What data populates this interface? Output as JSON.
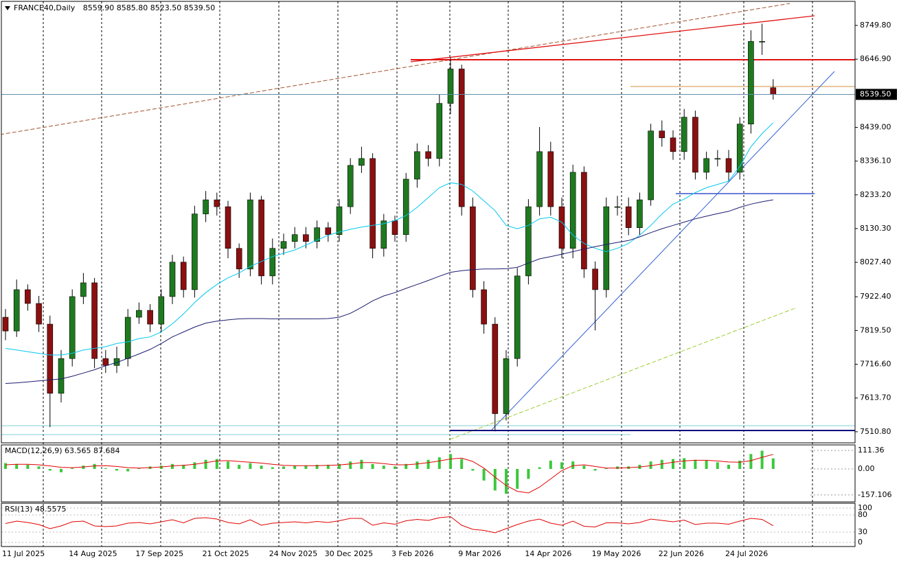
{
  "chart_data": {
    "type": "candlestick",
    "title": "FRANCE40,Daily",
    "header_values": [
      {
        "value": 8559.9,
        "label": "8559.90"
      },
      {
        "value": 8585.8,
        "label": "8585.80"
      },
      {
        "value": 8523.5,
        "label": "8523.50"
      },
      {
        "value": 8539.5,
        "label": "8539.50"
      }
    ],
    "categories": [
      "11 Jul 2025",
      null,
      null,
      null,
      null,
      null,
      "14 Aug 2025",
      null,
      null,
      null,
      null,
      null,
      "17 Sep 2025",
      null,
      null,
      null,
      null,
      null,
      "21 Oct 2025",
      null,
      null,
      null,
      null,
      null,
      "24 Nov 2025",
      null,
      null,
      null,
      null,
      "30 Dec 2025",
      null,
      null,
      null,
      null,
      null,
      "3 Feb 2026",
      null,
      null,
      null,
      null,
      null,
      "9 Mar 2026",
      null,
      null,
      null,
      null,
      null,
      "14 Apr 2026",
      null,
      null,
      null,
      null,
      null,
      "19 May 2026",
      null,
      null,
      null,
      null,
      null,
      "22 Jun 2026",
      null,
      null,
      null,
      null,
      null,
      "24 Jul 2026",
      null,
      null,
      null,
      null
    ],
    "open": [
      7860,
      7818,
      7944,
      7902,
      7839,
      7628,
      7734,
      7923,
      7965,
      7734,
      7713,
      7734,
      7860,
      7881,
      7839,
      7923,
      8028,
      7944,
      8175,
      8218,
      8197,
      8070,
      8007,
      8218,
      7986,
      8070,
      8091,
      8112,
      8091,
      8133,
      8112,
      8197,
      8323,
      8344,
      8070,
      8154,
      8112,
      8281,
      8365,
      8344,
      8512,
      8617,
      8197,
      7944,
      7839,
      7566,
      7734,
      7986,
      8197,
      8365,
      8197,
      8070,
      8302,
      8007,
      7944,
      8197,
      8197,
      8133,
      8218,
      8428,
      8407,
      8365,
      8470,
      8302,
      8344,
      8344,
      8302,
      8449,
      8701,
      8559.9
    ],
    "high": [
      7885,
      7975,
      7960,
      7925,
      7865,
      7760,
      7945,
      7995,
      7980,
      7760,
      7770,
      7885,
      7905,
      7900,
      7945,
      8050,
      8045,
      8200,
      8245,
      8240,
      8215,
      8085,
      8240,
      8230,
      8100,
      8115,
      8135,
      8135,
      8155,
      8150,
      8220,
      8345,
      8380,
      8360,
      8175,
      8170,
      8300,
      8390,
      8385,
      8540,
      8652,
      8630,
      8225,
      7970,
      7860,
      7760,
      8010,
      8220,
      8440,
      8395,
      8225,
      8325,
      8320,
      8030,
      8225,
      8230,
      8225,
      8240,
      8450,
      8460,
      8430,
      8495,
      8490,
      8365,
      8370,
      8370,
      8470,
      8735,
      8755,
      8585.8
    ],
    "low": [
      7790,
      7800,
      7880,
      7815,
      7525,
      7600,
      7710,
      7900,
      7705,
      7690,
      7690,
      7710,
      7840,
      7815,
      7815,
      7900,
      7920,
      7920,
      8150,
      8170,
      8040,
      7980,
      7985,
      7960,
      7960,
      8050,
      8070,
      8070,
      8070,
      8090,
      8090,
      8175,
      8300,
      8040,
      8045,
      8090,
      8090,
      8255,
      8320,
      8320,
      8480,
      8170,
      7920,
      7810,
      7512,
      7545,
      7710,
      7960,
      8170,
      8170,
      8040,
      8040,
      7980,
      7820,
      7920,
      8170,
      8110,
      8110,
      8200,
      8380,
      8340,
      8340,
      8280,
      8280,
      8320,
      8275,
      8280,
      8420,
      8660,
      8523.5
    ],
    "close": [
      7818,
      7944,
      7902,
      7839,
      7628,
      7734,
      7923,
      7965,
      7734,
      7713,
      7734,
      7860,
      7881,
      7839,
      7923,
      8028,
      7944,
      8175,
      8218,
      8197,
      8070,
      8007,
      8218,
      7986,
      8070,
      8091,
      8112,
      8091,
      8133,
      8112,
      8197,
      8323,
      8344,
      8070,
      8154,
      8112,
      8281,
      8365,
      8344,
      8512,
      8617,
      8197,
      7944,
      7839,
      7566,
      7734,
      7986,
      8197,
      8365,
      8197,
      8070,
      8302,
      8007,
      7944,
      8197,
      8197,
      8133,
      8218,
      8428,
      8407,
      8365,
      8470,
      8302,
      8344,
      8344,
      8302,
      8449,
      8701,
      8701,
      8539.5
    ],
    "up_color": "#1f7a1f",
    "down_color": "#8b1010",
    "ylim": [
      7477,
      8821
    ],
    "yticks": [
      {
        "value": 8749.8,
        "label": "8749.80"
      },
      {
        "value": 8646.9,
        "label": "8646.90"
      },
      {
        "value": 8439,
        "label": "8439.00"
      },
      {
        "value": 8336.1,
        "label": "8336.10"
      },
      {
        "value": 8233.2,
        "label": "8233.20"
      },
      {
        "value": 8130.3,
        "label": "8130.30"
      },
      {
        "value": 8027.4,
        "label": "8027.40"
      },
      {
        "value": 7922.4,
        "label": "7922.40"
      },
      {
        "value": 7819.5,
        "label": "7819.50"
      },
      {
        "value": 7716.6,
        "label": "7716.60"
      },
      {
        "value": 7613.7,
        "label": "7613.70"
      },
      {
        "value": 7510.8,
        "label": "7510.80"
      }
    ],
    "last_price": {
      "value": 8539.5,
      "label": "8539.50"
    },
    "overlays": [
      {
        "color": "#00c8f0",
        "values": [
          7765,
          7760,
          7755,
          7750,
          7745,
          7745,
          7750,
          7760,
          7765,
          7770,
          7780,
          7785,
          7795,
          7800,
          7815,
          7840,
          7870,
          7905,
          7935,
          7960,
          7980,
          7995,
          8015,
          8030,
          8045,
          8055,
          8065,
          8080,
          8095,
          8110,
          8120,
          8128,
          8135,
          8140,
          8145,
          8155,
          8170,
          8195,
          8225,
          8255,
          8270,
          8265,
          8245,
          8215,
          8185,
          8140,
          8130,
          8140,
          8160,
          8165,
          8150,
          8110,
          8085,
          8070,
          8060,
          8070,
          8085,
          8110,
          8140,
          8175,
          8205,
          8220,
          8240,
          8255,
          8265,
          8275,
          8320,
          8380,
          8420,
          8453
        ]
      },
      {
        "color": "#1a1a6e",
        "values": [
          7658,
          7660,
          7663,
          7666,
          7669,
          7672,
          7680,
          7690,
          7700,
          7712,
          7722,
          7735,
          7748,
          7762,
          7780,
          7800,
          7815,
          7830,
          7842,
          7848,
          7852,
          7855,
          7856,
          7856,
          7855,
          7855,
          7855,
          7855,
          7855,
          7856,
          7860,
          7872,
          7890,
          7910,
          7925,
          7935,
          7948,
          7960,
          7972,
          7985,
          7997,
          8002,
          8005,
          8007,
          8007,
          8008,
          8012,
          8025,
          8038,
          8045,
          8052,
          8060,
          8068,
          8075,
          8082,
          8088,
          8094,
          8105,
          8118,
          8130,
          8140,
          8150,
          8160,
          8168,
          8176,
          8183,
          8195,
          8205,
          8212,
          8218
        ]
      }
    ],
    "macd": {
      "title": "MACD(12,26,9)",
      "histogram": [
        35,
        30,
        25,
        15,
        -10,
        -20,
        5,
        20,
        30,
        5,
        -10,
        -15,
        5,
        15,
        20,
        30,
        25,
        40,
        55,
        60,
        45,
        25,
        35,
        20,
        10,
        15,
        20,
        20,
        25,
        25,
        30,
        45,
        55,
        30,
        20,
        15,
        30,
        45,
        55,
        70,
        90,
        60,
        -10,
        -70,
        -130,
        -150,
        -120,
        -60,
        10,
        50,
        40,
        45,
        20,
        -10,
        5,
        15,
        15,
        25,
        45,
        55,
        60,
        65,
        55,
        50,
        40,
        25,
        50,
        90,
        110,
        63.565
      ],
      "signal": [
        25,
        28,
        28,
        25,
        18,
        10,
        8,
        12,
        18,
        20,
        15,
        8,
        5,
        8,
        12,
        18,
        22,
        28,
        38,
        48,
        50,
        45,
        40,
        35,
        28,
        22,
        20,
        20,
        20,
        22,
        24,
        30,
        38,
        38,
        32,
        25,
        25,
        30,
        38,
        48,
        60,
        65,
        45,
        5,
        -50,
        -100,
        -135,
        -145,
        -110,
        -60,
        -10,
        20,
        25,
        15,
        5,
        5,
        8,
        12,
        20,
        30,
        40,
        48,
        52,
        52,
        48,
        42,
        40,
        50,
        70,
        87.684
      ],
      "histogram_color": "#3cc83c",
      "signal_color": "#e00000",
      "ylim": [
        -199,
        145
      ],
      "yticks": [
        111.36,
        {
          "value": 0,
          "label": "0.00"
        },
        -157.106
      ]
    },
    "rsi": {
      "title": "RSI(13)",
      "values": [
        55,
        62,
        58,
        52,
        40,
        48,
        60,
        62,
        48,
        46,
        48,
        56,
        58,
        54,
        60,
        66,
        57,
        70,
        72,
        68,
        58,
        54,
        66,
        50,
        56,
        58,
        60,
        57,
        61,
        58,
        63,
        70,
        70,
        50,
        57,
        53,
        63,
        67,
        64,
        72,
        75,
        50,
        38,
        35,
        28,
        40,
        52,
        62,
        68,
        56,
        50,
        62,
        47,
        45,
        57,
        57,
        54,
        58,
        68,
        64,
        60,
        65,
        52,
        56,
        56,
        53,
        62,
        70,
        67,
        48.5575
      ],
      "color": "#e00000",
      "ylim": [
        0,
        100
      ],
      "yticks": [
        100,
        80,
        30,
        0
      ]
    },
    "grid": true
  }
}
